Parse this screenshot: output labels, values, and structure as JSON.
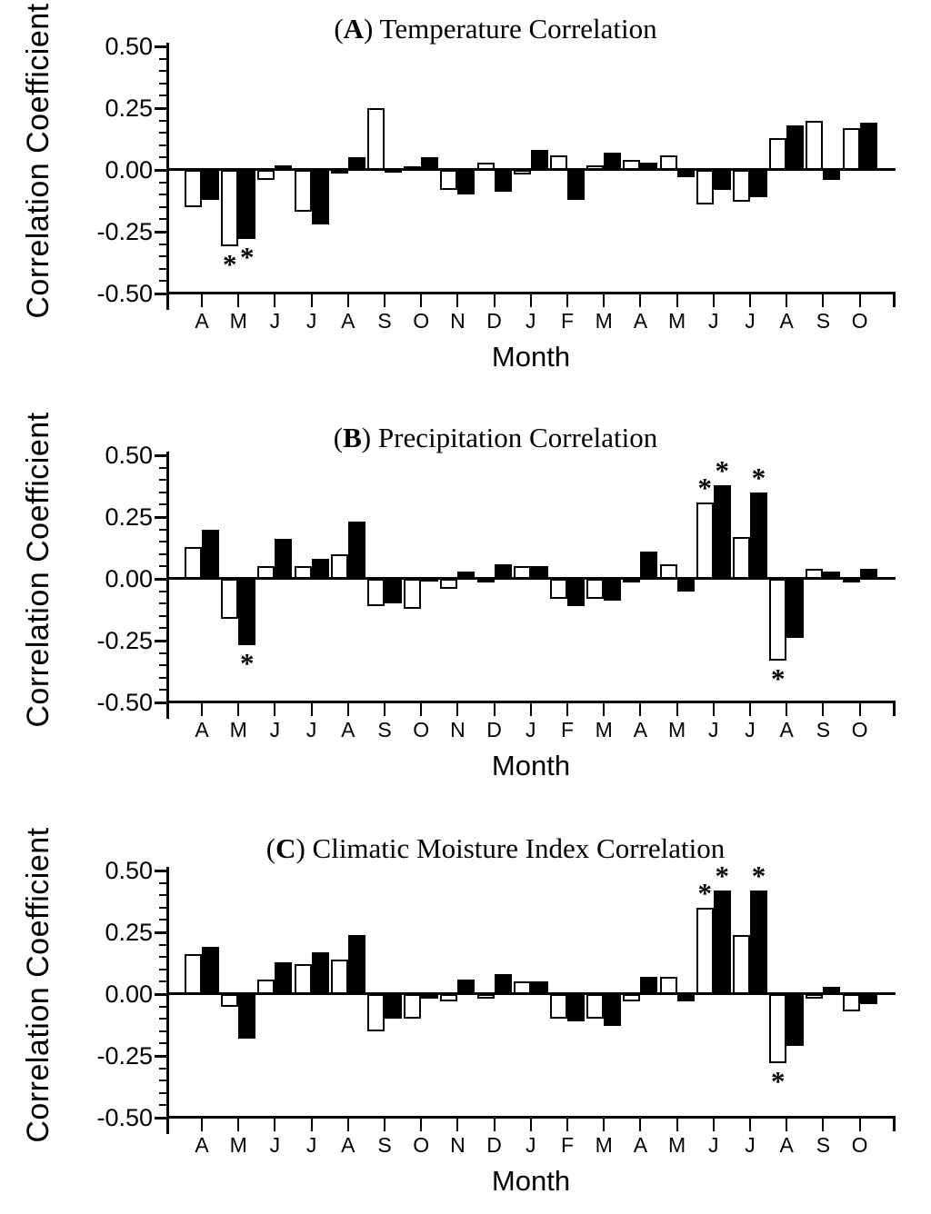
{
  "figure": {
    "ylabel": "Correlation Coefficient",
    "xlabel": "Month",
    "star_char": "*",
    "colors": {
      "foreground": "#000000",
      "background": "#ffffff",
      "open_bar_fill": "#ffffff",
      "filled_bar_fill": "#000000"
    }
  },
  "chart_data": [
    {
      "type": "bar",
      "title_parts": {
        "open": "(",
        "letter": "A",
        "close": ") ",
        "text": "Temperature Correlation"
      },
      "ylabel": "Correlation Coefficient",
      "xlabel": "Month",
      "ylim": [
        -0.5,
        0.5
      ],
      "ytick_labels": [
        "0.50",
        "0.25",
        "0.00",
        "-0.25",
        "-0.50"
      ],
      "categories": [
        "A",
        "M",
        "J",
        "J",
        "A",
        "S",
        "O",
        "N",
        "D",
        "J",
        "F",
        "M",
        "A",
        "M",
        "J",
        "J",
        "A",
        "S",
        "O"
      ],
      "series": [
        {
          "name": "open-bar-series",
          "fill": "white",
          "values": [
            -0.15,
            -0.31,
            -0.04,
            -0.17,
            -0.01,
            0.25,
            0.01,
            -0.08,
            0.03,
            -0.02,
            0.06,
            0.02,
            0.04,
            0.06,
            -0.14,
            -0.13,
            0.13,
            0.2,
            0.17
          ]
        },
        {
          "name": "filled-bar-series",
          "fill": "black",
          "values": [
            -0.12,
            -0.28,
            0.02,
            -0.22,
            0.05,
            -0.01,
            0.05,
            -0.1,
            -0.09,
            0.08,
            -0.12,
            0.07,
            0.03,
            -0.03,
            -0.08,
            -0.11,
            0.18,
            -0.04,
            0.19
          ]
        }
      ],
      "significant_markers": [
        {
          "month_index": 1,
          "series": "white"
        },
        {
          "month_index": 1,
          "series": "black"
        }
      ]
    },
    {
      "type": "bar",
      "title_parts": {
        "open": "(",
        "letter": "B",
        "close": ") ",
        "text": "Precipitation Correlation"
      },
      "ylabel": "Correlation Coefficient",
      "xlabel": "Month",
      "ylim": [
        -0.5,
        0.5
      ],
      "ytick_labels": [
        "0.50",
        "0.25",
        "0.00",
        "-0.25",
        "-0.50"
      ],
      "categories": [
        "A",
        "M",
        "J",
        "J",
        "A",
        "S",
        "O",
        "N",
        "D",
        "J",
        "F",
        "M",
        "A",
        "M",
        "J",
        "J",
        "A",
        "S",
        "O"
      ],
      "series": [
        {
          "name": "open-bar-series",
          "fill": "white",
          "values": [
            0.13,
            -0.16,
            0.05,
            0.05,
            0.1,
            -0.11,
            -0.12,
            -0.04,
            -0.01,
            0.05,
            -0.08,
            -0.08,
            -0.01,
            0.06,
            0.31,
            0.17,
            -0.33,
            0.04,
            -0.01
          ]
        },
        {
          "name": "filled-bar-series",
          "fill": "black",
          "values": [
            0.2,
            -0.27,
            0.16,
            0.08,
            0.23,
            -0.1,
            -0.01,
            0.03,
            0.06,
            0.05,
            -0.11,
            -0.09,
            0.11,
            -0.05,
            0.38,
            0.35,
            -0.24,
            0.03,
            0.04
          ]
        }
      ],
      "significant_markers": [
        {
          "month_index": 1,
          "series": "black"
        },
        {
          "month_index": 14,
          "series": "white"
        },
        {
          "month_index": 14,
          "series": "black"
        },
        {
          "month_index": 15,
          "series": "black"
        },
        {
          "month_index": 16,
          "series": "white"
        }
      ]
    },
    {
      "type": "bar",
      "title_parts": {
        "open": "(",
        "letter": "C",
        "close": ") ",
        "text": "Climatic Moisture Index Correlation"
      },
      "ylabel": "Correlation Coefficient",
      "xlabel": "Month",
      "ylim": [
        -0.5,
        0.5
      ],
      "ytick_labels": [
        "0.50",
        "0.25",
        "0.00",
        "-0.25",
        "-0.50"
      ],
      "categories": [
        "A",
        "M",
        "J",
        "J",
        "A",
        "S",
        "O",
        "N",
        "D",
        "J",
        "F",
        "M",
        "A",
        "M",
        "J",
        "J",
        "A",
        "S",
        "O"
      ],
      "series": [
        {
          "name": "open-bar-series",
          "fill": "white",
          "values": [
            0.16,
            -0.05,
            0.06,
            0.12,
            0.14,
            -0.15,
            -0.1,
            -0.03,
            -0.02,
            0.05,
            -0.1,
            -0.1,
            -0.03,
            0.07,
            0.35,
            0.24,
            -0.28,
            -0.02,
            -0.07
          ]
        },
        {
          "name": "filled-bar-series",
          "fill": "black",
          "values": [
            0.19,
            -0.18,
            0.13,
            0.17,
            0.24,
            -0.1,
            -0.02,
            0.06,
            0.08,
            0.05,
            -0.11,
            -0.13,
            0.07,
            -0.03,
            0.42,
            0.42,
            -0.21,
            0.03,
            -0.04
          ]
        }
      ],
      "significant_markers": [
        {
          "month_index": 14,
          "series": "white"
        },
        {
          "month_index": 14,
          "series": "black"
        },
        {
          "month_index": 15,
          "series": "black"
        },
        {
          "month_index": 16,
          "series": "white"
        }
      ]
    }
  ]
}
